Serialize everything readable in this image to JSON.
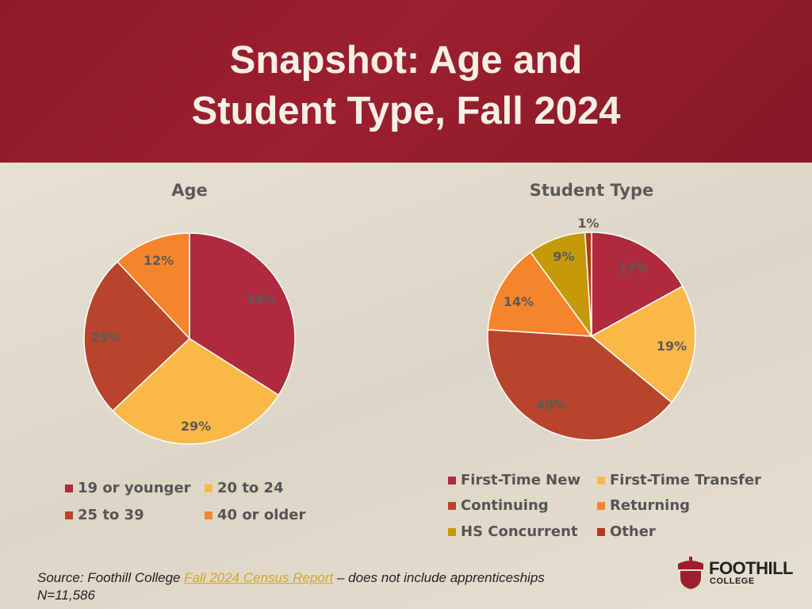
{
  "slide": {
    "title_line1": "Snapshot: Age and",
    "title_line2": "Student Type, Fall 2024",
    "source_prefix": "Source: Foothill College ",
    "source_link": "Fall 2024 Census Report",
    "source_suffix": " – does not include apprenticeships",
    "source_n": "N=11,586",
    "logo_name": "FOOTHILL",
    "logo_sub": "COLLEGE",
    "logo_icon": "acorn-icon"
  },
  "chart_data": [
    {
      "type": "pie",
      "title": "Age",
      "categories": [
        "19 or younger",
        "20 to 24",
        "25 to 39",
        "40 or older"
      ],
      "values": [
        34,
        29,
        25,
        12
      ],
      "labels": [
        "34%",
        "29%",
        "25%",
        "12%"
      ],
      "colors": [
        "#b02a3e",
        "#fbb848",
        "#b8442b",
        "#f5842a"
      ],
      "legend_position": "bottom"
    },
    {
      "type": "pie",
      "title": "Student Type",
      "categories": [
        "First-Time New",
        "First-Time Transfer",
        "Continuing",
        "Returning",
        "HS Concurrent",
        "Other"
      ],
      "values": [
        17,
        19,
        40,
        14,
        9,
        1
      ],
      "labels": [
        "17%",
        "19%",
        "40%",
        "14%",
        "9%",
        "1%"
      ],
      "colors": [
        "#b02a3e",
        "#fbb848",
        "#b8442b",
        "#f5842a",
        "#c49a0a",
        "#b03a1a"
      ],
      "legend_position": "bottom"
    }
  ]
}
